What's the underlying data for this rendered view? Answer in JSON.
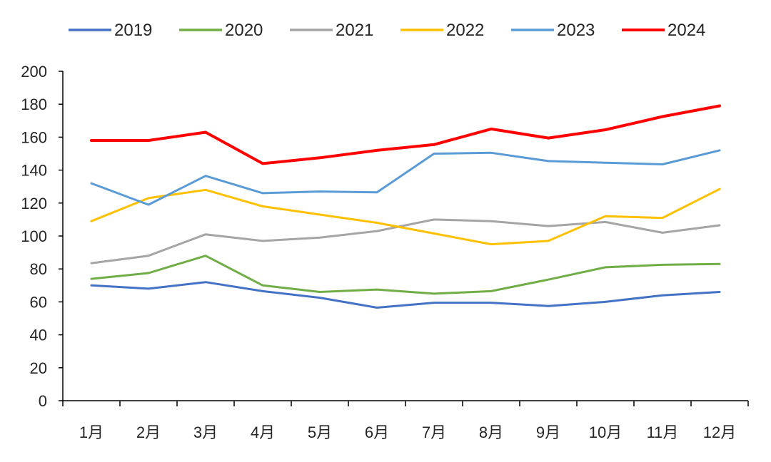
{
  "chart_data": {
    "type": "line",
    "title": "",
    "xlabel": "",
    "ylabel": "",
    "categories": [
      "1月",
      "2月",
      "3月",
      "4月",
      "5月",
      "6月",
      "7月",
      "8月",
      "9月",
      "10月",
      "11月",
      "12月"
    ],
    "ylim": [
      0,
      200
    ],
    "yticks": [
      0,
      20,
      40,
      60,
      80,
      100,
      120,
      140,
      160,
      180,
      200
    ],
    "grid": false,
    "legend_position": "top",
    "series": [
      {
        "name": "2019",
        "color": "#4472C4",
        "values": [
          70,
          68,
          72,
          66.5,
          62.5,
          56.5,
          59.5,
          59.5,
          57.5,
          60,
          64,
          66
        ]
      },
      {
        "name": "2020",
        "color": "#70AD47",
        "values": [
          74,
          77.5,
          88,
          70,
          66,
          67.5,
          65,
          66.5,
          73.5,
          81,
          82.5,
          83
        ]
      },
      {
        "name": "2021",
        "color": "#A5A5A5",
        "values": [
          83.5,
          88,
          101,
          97,
          99,
          103,
          110,
          109,
          106,
          108.5,
          102,
          106.5
        ]
      },
      {
        "name": "2022",
        "color": "#FFC000",
        "values": [
          109,
          123,
          128,
          118,
          113,
          108,
          101.5,
          95,
          97,
          112,
          111,
          128.5
        ]
      },
      {
        "name": "2023",
        "color": "#5B9BD5",
        "values": [
          132,
          119,
          136.5,
          126,
          127,
          126.5,
          150,
          150.5,
          145.5,
          144.5,
          143.5,
          152
        ]
      },
      {
        "name": "2024",
        "color": "#FF0000",
        "values": [
          158,
          158,
          163,
          144,
          147.5,
          152,
          155.5,
          165,
          159.5,
          164.5,
          172.5,
          179
        ]
      }
    ]
  }
}
